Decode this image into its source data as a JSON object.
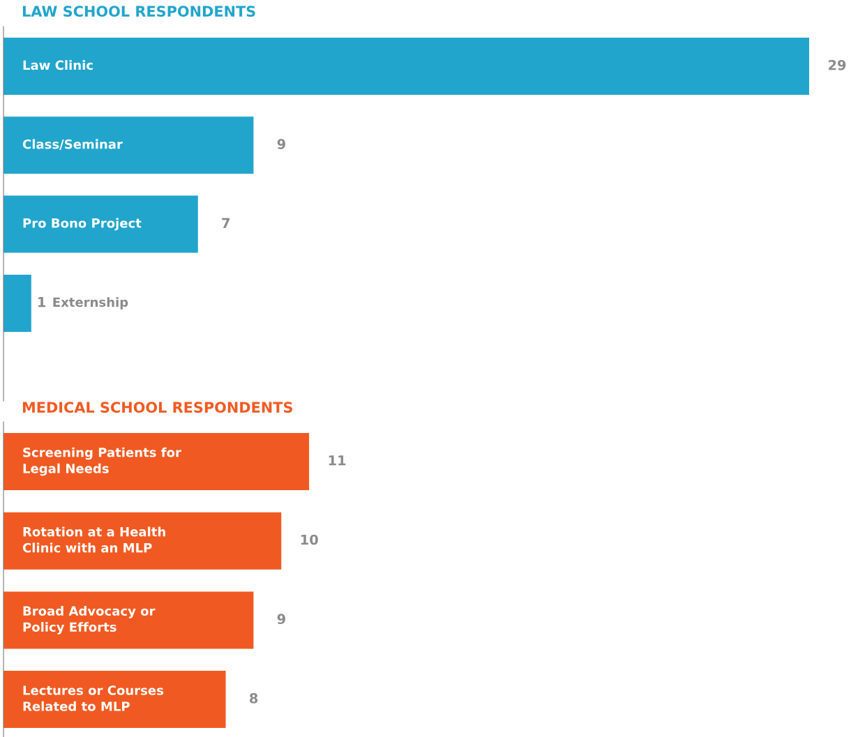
{
  "chart_data": [
    {
      "type": "bar",
      "orientation": "horizontal",
      "title": "LAW SCHOOL RESPONDENTS",
      "categories": [
        "Law Clinic",
        "Class/Seminar",
        "Pro Bono Project",
        "Externship"
      ],
      "values": [
        29,
        9,
        7,
        1
      ],
      "color": "#22a5cc",
      "data_labels": true
    },
    {
      "type": "bar",
      "orientation": "horizontal",
      "title": "MEDICAL SCHOOL RESPONDENTS",
      "categories": [
        "Screening Patients for\nLegal Needs",
        "Rotation at a Health\nClinic with an MLP",
        "Broad Advocacy or\nPolicy Efforts",
        "Lectures or Courses\nRelated to MLP"
      ],
      "values": [
        11,
        10,
        9,
        8
      ],
      "color": "#f05a22",
      "data_labels": true
    }
  ]
}
